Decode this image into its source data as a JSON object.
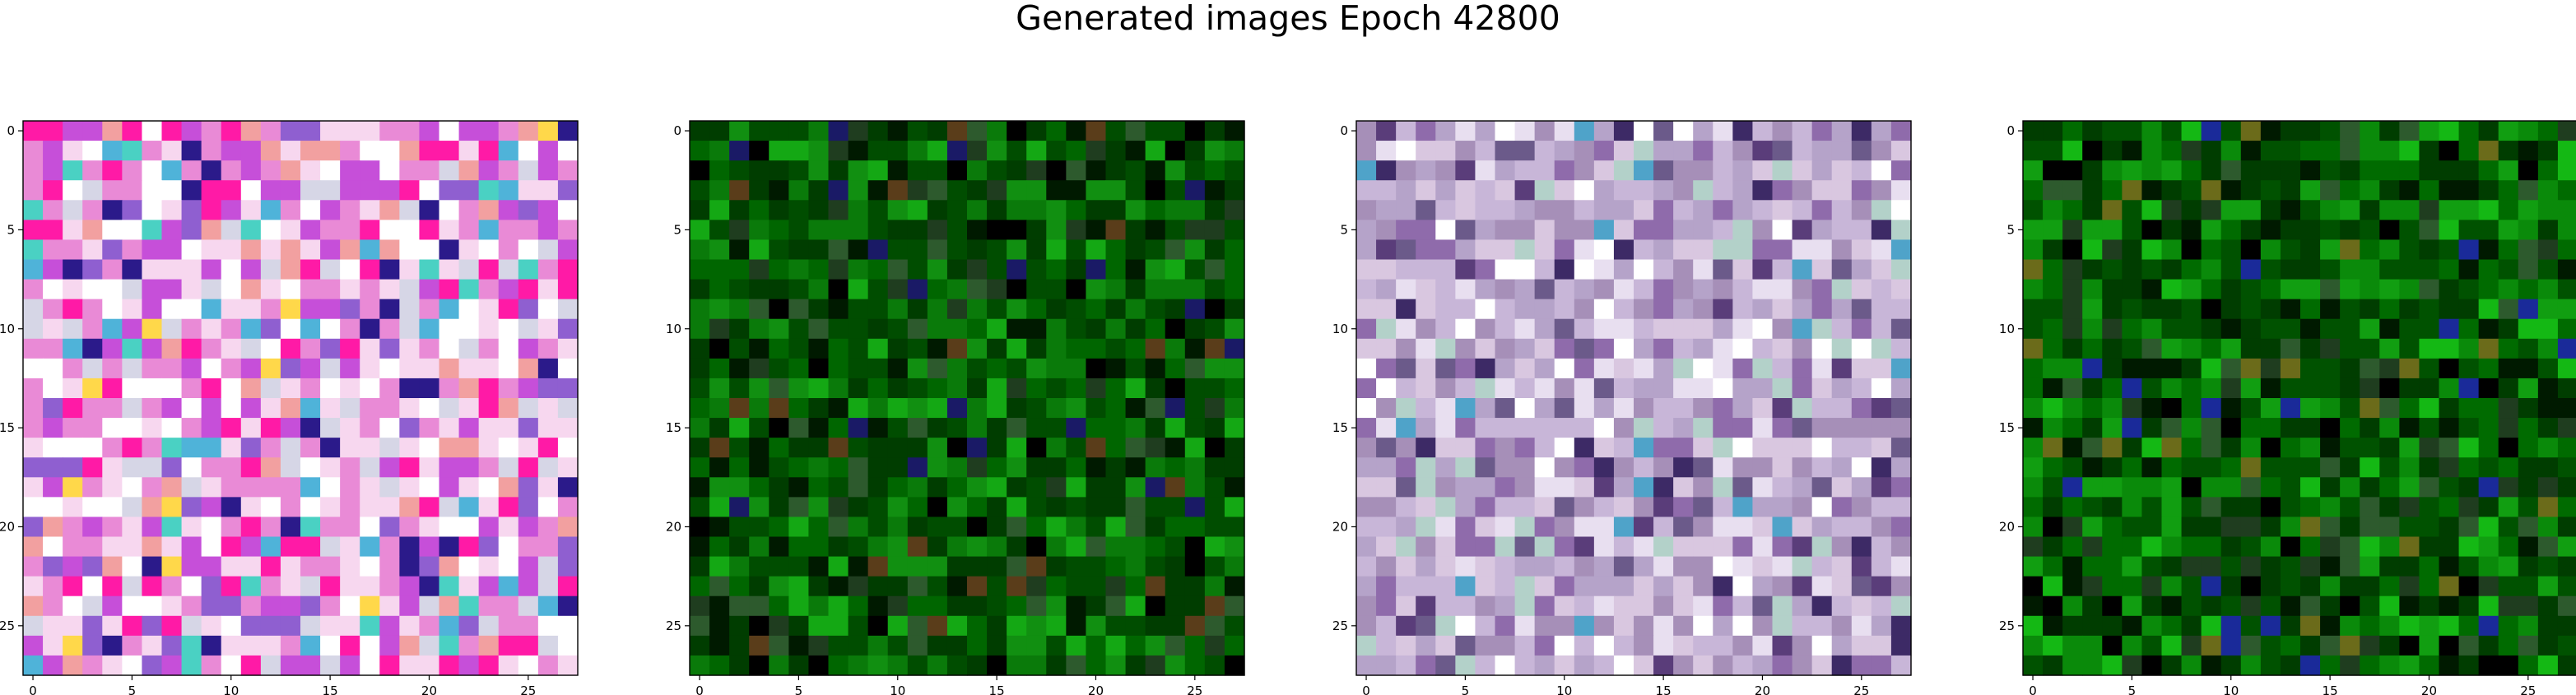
{
  "chart_data": {
    "type": "heatmap",
    "title": "Generated images Epoch 42800",
    "grid": false,
    "panels": [
      {
        "name": "",
        "palette": [
          "#ffffff",
          "#f7d7ef",
          "#e98ad6",
          "#ff1aa6",
          "#c64fd9",
          "#8f5fd0",
          "#4fb3d9",
          "#2b1a8a",
          "#ffd84a",
          "#f2a0a0",
          "#d6d6e6",
          "#4ad1c3"
        ],
        "weights": [
          4,
          5,
          5,
          3,
          3,
          2,
          1,
          1,
          1,
          2,
          3,
          1
        ],
        "seed": 11
      },
      {
        "name": "",
        "palette": [
          "#003d00",
          "#004d00",
          "#006600",
          "#0a7a0a",
          "#118f11",
          "#001a00",
          "#000000",
          "#1f3d1f",
          "#2d5a2d",
          "#14a814",
          "#1a1a66",
          "#5a3d1a"
        ],
        "weights": [
          6,
          6,
          5,
          4,
          3,
          3,
          2,
          2,
          2,
          2,
          1,
          1
        ],
        "seed": 23
      },
      {
        "name": "",
        "palette": [
          "#c8b6d8",
          "#b5a3c9",
          "#d9c7e0",
          "#a68fb8",
          "#e8dff0",
          "#8f6bab",
          "#3d2a66",
          "#4fa3c9",
          "#b3d1c9",
          "#6b5a8a",
          "#ffffff",
          "#5a3d7a"
        ],
        "weights": [
          6,
          5,
          5,
          4,
          3,
          3,
          1,
          1,
          2,
          2,
          2,
          1
        ],
        "seed": 37
      },
      {
        "name": "",
        "palette": [
          "#003d00",
          "#005200",
          "#006b00",
          "#0a8a0a",
          "#119e11",
          "#001a00",
          "#000000",
          "#1f3d1f",
          "#2d5a2d",
          "#14b814",
          "#1a2a99",
          "#6b6b1a"
        ],
        "weights": [
          6,
          6,
          5,
          4,
          3,
          3,
          2,
          2,
          2,
          2,
          1,
          1
        ],
        "seed": 51
      }
    ],
    "rows": 28,
    "cols": 28,
    "xticks": [
      0,
      5,
      10,
      15,
      20,
      25
    ],
    "yticks": [
      0,
      5,
      10,
      15,
      20,
      25
    ],
    "xlim": [
      -0.5,
      27.5
    ],
    "ylim": [
      27.5,
      -0.5
    ]
  }
}
